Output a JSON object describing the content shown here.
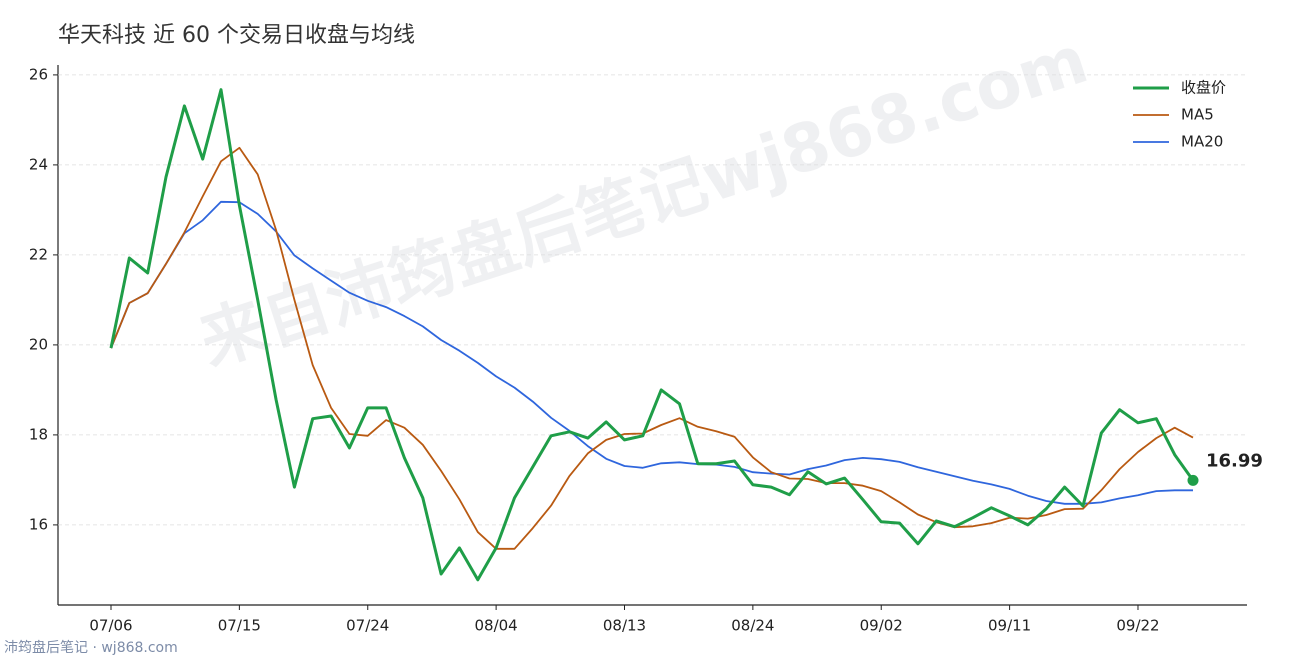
{
  "chart_data": {
    "type": "line",
    "title": "华天科技 近 60 个交易日收盘与均线",
    "watermark": "来自沛筠盘后笔记wj868.com",
    "footer": "沛筠盘后笔记 · wj868.com",
    "categories": [
      "07/06",
      null,
      null,
      null,
      null,
      null,
      null,
      "07/15",
      null,
      null,
      null,
      null,
      null,
      null,
      "07/24",
      null,
      null,
      null,
      null,
      null,
      null,
      "08/04",
      null,
      null,
      null,
      null,
      null,
      null,
      "08/13",
      null,
      null,
      null,
      null,
      null,
      null,
      "08/24",
      null,
      null,
      null,
      null,
      null,
      null,
      "09/02",
      null,
      null,
      null,
      null,
      null,
      null,
      "09/11",
      null,
      null,
      null,
      null,
      null,
      null,
      "09/22",
      null,
      null,
      null
    ],
    "series": [
      {
        "name": "收盘价",
        "color": "#1f9e48",
        "width": 3,
        "end_label": true,
        "values": [
          19.93,
          21.93,
          21.6,
          23.73,
          25.31,
          24.13,
          25.67,
          23.1,
          21.0,
          18.78,
          16.84,
          18.36,
          18.42,
          17.71,
          18.6,
          18.6,
          17.49,
          16.6,
          14.91,
          15.49,
          14.78,
          15.49,
          16.6,
          17.29,
          17.98,
          18.07,
          17.93,
          18.29,
          17.89,
          17.98,
          19.0,
          18.69,
          17.36,
          17.36,
          17.42,
          16.89,
          16.84,
          16.67,
          17.18,
          16.91,
          17.04,
          16.56,
          16.07,
          16.04,
          15.58,
          16.09,
          15.96,
          16.16,
          16.38,
          16.2,
          16.0,
          16.36,
          16.84,
          16.42,
          18.04,
          18.56,
          18.27,
          18.36,
          17.56,
          16.99
        ]
      },
      {
        "name": "MA5",
        "color": "#b95a12",
        "width": 1.8,
        "values": [
          19.93,
          20.93,
          21.15,
          21.8,
          22.5,
          23.3,
          24.08,
          24.38,
          23.79,
          22.55,
          21.0,
          19.55,
          18.6,
          18.02,
          17.98,
          18.33,
          18.16,
          17.78,
          17.2,
          16.57,
          15.84,
          15.47,
          15.47,
          15.93,
          16.43,
          17.09,
          17.59,
          17.89,
          18.02,
          18.03,
          18.22,
          18.37,
          18.18,
          18.08,
          17.96,
          17.5,
          17.17,
          17.03,
          17.02,
          16.93,
          16.93,
          16.87,
          16.75,
          16.5,
          16.23,
          16.06,
          15.95,
          15.97,
          16.04,
          16.16,
          16.14,
          16.22,
          16.35,
          16.36,
          16.77,
          17.24,
          17.62,
          17.93,
          18.16,
          17.94
        ]
      },
      {
        "name": "MA20",
        "color": "#2f66dd",
        "width": 1.8,
        "values": [
          19.93,
          20.93,
          21.15,
          21.8,
          22.48,
          22.77,
          23.18,
          23.17,
          22.91,
          22.52,
          21.99,
          21.7,
          21.43,
          21.16,
          20.98,
          20.84,
          20.64,
          20.41,
          20.11,
          19.87,
          19.6,
          19.3,
          19.05,
          18.74,
          18.38,
          18.09,
          17.75,
          17.47,
          17.31,
          17.27,
          17.37,
          17.39,
          17.35,
          17.34,
          17.29,
          17.17,
          17.14,
          17.12,
          17.24,
          17.32,
          17.44,
          17.49,
          17.46,
          17.4,
          17.28,
          17.18,
          17.08,
          16.98,
          16.9,
          16.8,
          16.65,
          16.53,
          16.47,
          16.47,
          16.5,
          16.59,
          16.66,
          16.75,
          16.77,
          16.77
        ]
      }
    ],
    "ylim": [
      14.22,
      26.22
    ],
    "yticks": [
      16,
      18,
      20,
      22,
      24,
      26
    ],
    "grid": true,
    "legend": "upper right"
  }
}
